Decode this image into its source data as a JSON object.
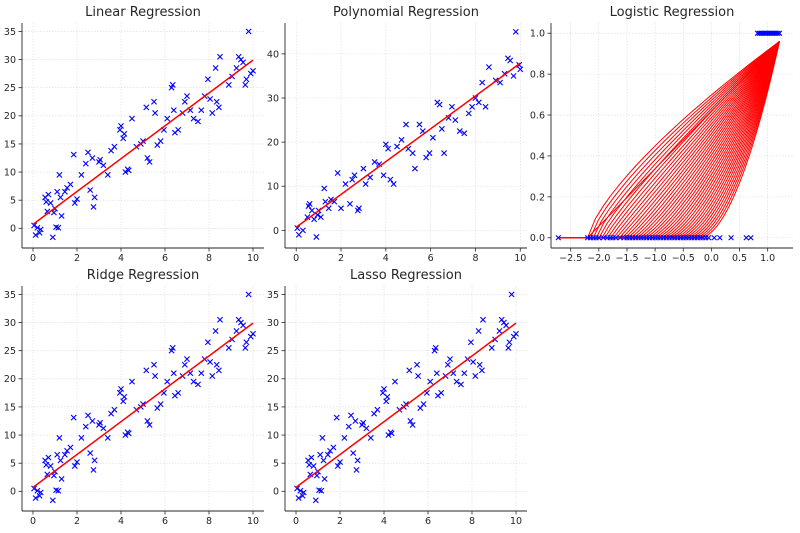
{
  "colors": {
    "points": "#0000ff",
    "fit": "#ff0000",
    "grid": "#d9d9d9",
    "text": "#262626"
  },
  "marker_icon": "x-marker-icon",
  "chart_data": [
    {
      "id": "linear",
      "type": "scatter",
      "title": "Linear Regression",
      "xlim": [
        -0.5,
        10.5
      ],
      "ylim": [
        -3.5,
        36.5
      ],
      "xticks": [
        0,
        2,
        4,
        6,
        8,
        10
      ],
      "yticks": [
        0,
        5,
        10,
        15,
        20,
        25,
        30,
        35
      ],
      "fit": {
        "intercept": 0.7,
        "slope": 2.92,
        "x_range": [
          0,
          10
        ]
      },
      "points_ref": "shared"
    },
    {
      "id": "polynomial",
      "type": "scatter",
      "title": "Polynomial Regression",
      "xlim": [
        -0.5,
        10.3
      ],
      "ylim": [
        -4,
        47
      ],
      "xticks": [
        0,
        2,
        4,
        6,
        8,
        10
      ],
      "yticks": [
        0,
        10,
        20,
        30,
        40
      ],
      "fit": {
        "intercept": 0.7,
        "slope": 3.72,
        "x_range": [
          0,
          10
        ]
      },
      "points_ref": "polynomial"
    },
    {
      "id": "logistic",
      "type": "line",
      "title": "Logistic Regression",
      "xlim": [
        -2.85,
        1.45
      ],
      "ylim": [
        -0.05,
        1.05
      ],
      "xticks": [
        -2.5,
        -2.0,
        -1.5,
        -1.0,
        -0.5,
        0.0,
        0.5,
        1.0
      ],
      "xtick_labels": [
        "−2.5",
        "−2.0",
        "−1.5",
        "−1.0",
        "−0.5",
        "0.0",
        "0.5",
        "1.0"
      ],
      "yticks": [
        0.0,
        0.2,
        0.4,
        0.6,
        0.8,
        1.0
      ],
      "ytick_labels": [
        "0.0",
        "0.2",
        "0.4",
        "0.6",
        "0.8",
        "1.0"
      ],
      "points_class0_x": [
        -2.72,
        -2.2,
        -2.15,
        -2.1,
        -2.05,
        -2.0,
        -1.92,
        -1.85,
        -1.8,
        -1.75,
        -1.7,
        -1.62,
        -1.55,
        -1.5,
        -1.45,
        -1.4,
        -1.35,
        -1.3,
        -1.25,
        -1.2,
        -1.15,
        -1.1,
        -1.05,
        -1.0,
        -0.95,
        -0.9,
        -0.85,
        -0.8,
        -0.75,
        -0.7,
        -0.65,
        -0.6,
        -0.55,
        -0.5,
        -0.45,
        -0.4,
        -0.35,
        -0.3,
        -0.25,
        -0.2,
        -0.15,
        -0.1,
        -0.05,
        0.05,
        0.15,
        0.35,
        0.62,
        0.7
      ],
      "points_class1_x": [
        0.82,
        0.85,
        0.88,
        0.91,
        0.94,
        0.97,
        1.0,
        1.03,
        1.06,
        1.09,
        1.12,
        1.15,
        1.18,
        1.21
      ],
      "curve_end": [
        1.21,
        0.96
      ],
      "curve_start": [
        -2.72,
        0.0
      ]
    },
    {
      "id": "ridge",
      "type": "scatter",
      "title": "Ridge Regression",
      "xlim": [
        -0.5,
        10.5
      ],
      "ylim": [
        -3.5,
        36.5
      ],
      "xticks": [
        0,
        2,
        4,
        6,
        8,
        10
      ],
      "yticks": [
        0,
        5,
        10,
        15,
        20,
        25,
        30,
        35
      ],
      "fit": {
        "intercept": 0.7,
        "slope": 2.92,
        "x_range": [
          0,
          10
        ]
      },
      "points_ref": "shared"
    },
    {
      "id": "lasso",
      "type": "scatter",
      "title": "Lasso Regression",
      "xlim": [
        -0.5,
        10.5
      ],
      "ylim": [
        -3.5,
        36.5
      ],
      "xticks": [
        0,
        2,
        4,
        6,
        8,
        10
      ],
      "yticks": [
        0,
        5,
        10,
        15,
        20,
        25,
        30,
        35
      ],
      "fit": {
        "intercept": 0.7,
        "slope": 2.92,
        "x_range": [
          0,
          10
        ]
      },
      "points_ref": "shared"
    }
  ],
  "points": {
    "shared": [
      [
        0.05,
        0.5
      ],
      [
        0.12,
        -1.2
      ],
      [
        0.2,
        0.1
      ],
      [
        0.3,
        -0.8
      ],
      [
        0.35,
        -0.2
      ],
      [
        0.55,
        5.5
      ],
      [
        0.6,
        4.7
      ],
      [
        0.65,
        3.0
      ],
      [
        0.7,
        6.0
      ],
      [
        0.8,
        4.5
      ],
      [
        0.9,
        -1.6
      ],
      [
        0.95,
        2.8
      ],
      [
        1.0,
        3.5
      ],
      [
        1.05,
        0.2
      ],
      [
        1.1,
        6.5
      ],
      [
        1.15,
        0.1
      ],
      [
        1.2,
        9.5
      ],
      [
        1.25,
        5.5
      ],
      [
        1.3,
        2.2
      ],
      [
        1.45,
        6.5
      ],
      [
        1.55,
        7.2
      ],
      [
        1.7,
        7.8
      ],
      [
        1.85,
        13.1
      ],
      [
        1.9,
        4.5
      ],
      [
        2.0,
        5.2
      ],
      [
        2.2,
        9.5
      ],
      [
        2.4,
        11.5
      ],
      [
        2.5,
        13.5
      ],
      [
        2.6,
        6.8
      ],
      [
        2.7,
        12.5
      ],
      [
        2.75,
        3.8
      ],
      [
        2.8,
        5.5
      ],
      [
        3.0,
        11.8
      ],
      [
        3.05,
        12.2
      ],
      [
        3.2,
        11.2
      ],
      [
        3.4,
        9.5
      ],
      [
        3.55,
        13.8
      ],
      [
        3.7,
        14.5
      ],
      [
        3.95,
        17.5
      ],
      [
        4.0,
        18.2
      ],
      [
        4.1,
        16.0
      ],
      [
        4.15,
        16.8
      ],
      [
        4.2,
        10.0
      ],
      [
        4.3,
        10.5
      ],
      [
        4.35,
        10.3
      ],
      [
        4.5,
        19.5
      ],
      [
        4.7,
        14.5
      ],
      [
        4.9,
        15.0
      ],
      [
        5.0,
        15.5
      ],
      [
        5.15,
        21.5
      ],
      [
        5.2,
        12.5
      ],
      [
        5.3,
        11.8
      ],
      [
        5.5,
        22.5
      ],
      [
        5.55,
        20.5
      ],
      [
        5.65,
        14.8
      ],
      [
        5.8,
        15.5
      ],
      [
        5.95,
        17.5
      ],
      [
        6.1,
        19.5
      ],
      [
        6.3,
        25.0
      ],
      [
        6.35,
        25.5
      ],
      [
        6.4,
        21.0
      ],
      [
        6.45,
        17.0
      ],
      [
        6.6,
        17.5
      ],
      [
        6.8,
        20.5
      ],
      [
        6.9,
        22.5
      ],
      [
        7.0,
        23.5
      ],
      [
        7.15,
        21.0
      ],
      [
        7.3,
        19.5
      ],
      [
        7.5,
        19.0
      ],
      [
        7.65,
        21.0
      ],
      [
        7.8,
        23.5
      ],
      [
        7.95,
        26.5
      ],
      [
        8.05,
        23.0
      ],
      [
        8.15,
        20.5
      ],
      [
        8.3,
        28.5
      ],
      [
        8.35,
        22.5
      ],
      [
        8.45,
        21.5
      ],
      [
        8.5,
        30.5
      ],
      [
        8.9,
        25.5
      ],
      [
        9.05,
        27.0
      ],
      [
        9.25,
        28.5
      ],
      [
        9.35,
        30.5
      ],
      [
        9.45,
        30.0
      ],
      [
        9.55,
        29.5
      ],
      [
        9.65,
        25.5
      ],
      [
        9.7,
        26.5
      ],
      [
        9.8,
        35.0
      ],
      [
        9.9,
        27.5
      ],
      [
        10.0,
        28.0
      ]
    ],
    "polynomial": [
      [
        0.05,
        0.5
      ],
      [
        0.12,
        -1.0
      ],
      [
        0.3,
        0.0
      ],
      [
        0.5,
        3.0
      ],
      [
        0.55,
        5.5
      ],
      [
        0.6,
        6.0
      ],
      [
        0.7,
        4.5
      ],
      [
        0.8,
        2.5
      ],
      [
        0.9,
        -1.5
      ],
      [
        0.95,
        3.5
      ],
      [
        1.0,
        4.5
      ],
      [
        1.1,
        3.0
      ],
      [
        1.25,
        9.5
      ],
      [
        1.3,
        6.5
      ],
      [
        1.45,
        5.0
      ],
      [
        1.55,
        7.0
      ],
      [
        1.7,
        6.5
      ],
      [
        1.85,
        13.0
      ],
      [
        2.0,
        5.0
      ],
      [
        2.2,
        10.5
      ],
      [
        2.4,
        6.0
      ],
      [
        2.5,
        11.5
      ],
      [
        2.6,
        12.5
      ],
      [
        2.75,
        4.5
      ],
      [
        2.8,
        5.0
      ],
      [
        3.0,
        14.0
      ],
      [
        3.1,
        10.5
      ],
      [
        3.3,
        12.0
      ],
      [
        3.5,
        15.5
      ],
      [
        3.7,
        15.0
      ],
      [
        3.9,
        12.5
      ],
      [
        4.0,
        19.5
      ],
      [
        4.1,
        18.5
      ],
      [
        4.2,
        11.5
      ],
      [
        4.35,
        10.5
      ],
      [
        4.5,
        19.0
      ],
      [
        4.7,
        20.5
      ],
      [
        4.9,
        24.0
      ],
      [
        5.0,
        18.5
      ],
      [
        5.2,
        17.5
      ],
      [
        5.3,
        14.0
      ],
      [
        5.5,
        24.0
      ],
      [
        5.65,
        22.5
      ],
      [
        5.8,
        16.5
      ],
      [
        5.95,
        17.5
      ],
      [
        6.1,
        21.0
      ],
      [
        6.3,
        29.0
      ],
      [
        6.4,
        28.5
      ],
      [
        6.5,
        23.0
      ],
      [
        6.6,
        17.5
      ],
      [
        6.8,
        25.5
      ],
      [
        6.95,
        28.0
      ],
      [
        7.1,
        25.0
      ],
      [
        7.3,
        22.5
      ],
      [
        7.5,
        22.0
      ],
      [
        7.7,
        26.5
      ],
      [
        7.85,
        28.0
      ],
      [
        8.0,
        30.0
      ],
      [
        8.15,
        29.0
      ],
      [
        8.3,
        33.5
      ],
      [
        8.45,
        28.0
      ],
      [
        8.6,
        37.0
      ],
      [
        8.9,
        34.0
      ],
      [
        9.1,
        33.5
      ],
      [
        9.3,
        35.5
      ],
      [
        9.45,
        39.0
      ],
      [
        9.55,
        38.5
      ],
      [
        9.7,
        35.0
      ],
      [
        9.8,
        45.0
      ],
      [
        9.95,
        37.5
      ],
      [
        10.0,
        36.5
      ]
    ]
  }
}
